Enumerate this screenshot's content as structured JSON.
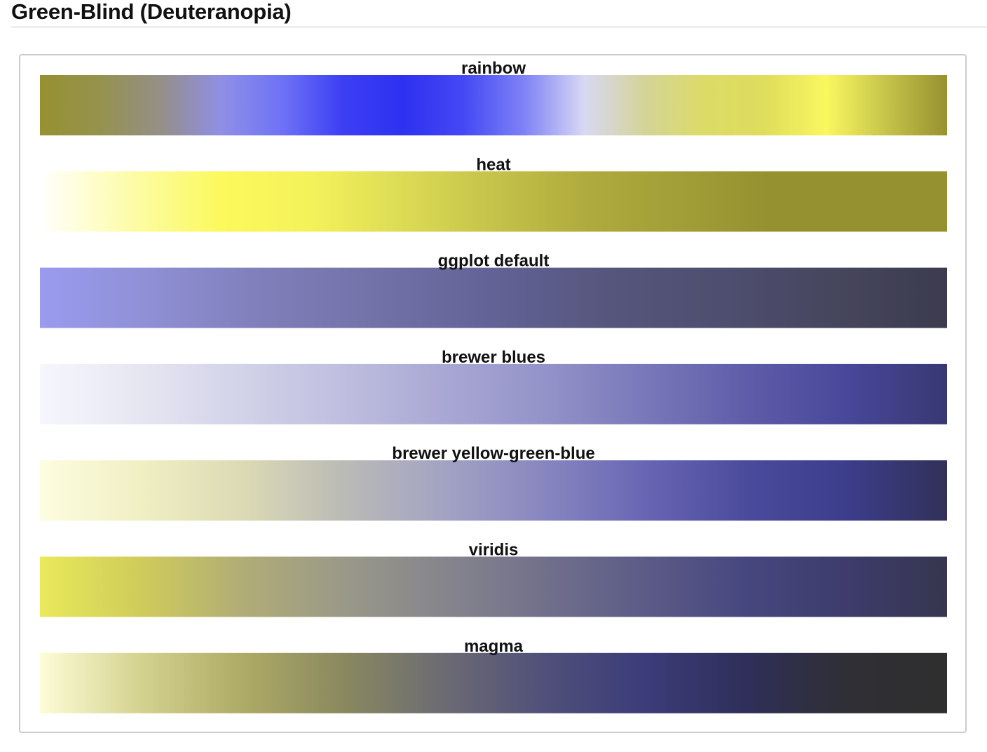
{
  "page": {
    "heading": "Green-Blind (Deuteranopia)"
  },
  "chart_data": {
    "type": "heatmap",
    "description_kind": "color palette swatches",
    "palettes": [
      {
        "name": "rainbow",
        "colors": [
          "#969130",
          "#95924f",
          "#958f88",
          "#8f8fe6",
          "#6f72f6",
          "#3c3ff4",
          "#2e31ef",
          "#4448f4",
          "#7e82f5",
          "#d8d8f3",
          "#d4d498",
          "#dcdb66",
          "#dfdd5c",
          "#faf85f",
          "#c6c34a",
          "#969130"
        ]
      },
      {
        "name": "heat",
        "colors": [
          "#ffffff",
          "#fdfca8",
          "#fcf95c",
          "#f4f25a",
          "#dcdb55",
          "#c5c34a",
          "#b0ab3e",
          "#a29f38",
          "#969130",
          "#969130",
          "#969130"
        ]
      },
      {
        "name": "ggplot default",
        "colors": [
          "#9a9bef",
          "#8e8fd4",
          "#7f7eb9",
          "#7271a7",
          "#626296",
          "#56567d",
          "#4e4e70",
          "#46465e",
          "#3c3b4e"
        ]
      },
      {
        "name": "brewer blues",
        "colors": [
          "#f6f7fd",
          "#e6e6f2",
          "#d2d2e9",
          "#bfbedf",
          "#a9a8d4",
          "#9493c9",
          "#7978ba",
          "#5f5da9",
          "#48479a",
          "#383873"
        ]
      },
      {
        "name": "brewer yellow-green-blue",
        "colors": [
          "#fdfde0",
          "#f0efc3",
          "#dcdab5",
          "#bbbbb6",
          "#a3a3c3",
          "#8886c0",
          "#6866b3",
          "#4b4b9d",
          "#3c3d8b",
          "#313159"
        ]
      },
      {
        "name": "viridis",
        "colors": [
          "#e9e95a",
          "#cfcc5b",
          "#b1ad76",
          "#9a9988",
          "#86858d",
          "#71708b",
          "#5c5b87",
          "#474780",
          "#3d3c6c",
          "#36364f"
        ]
      },
      {
        "name": "magma",
        "colors": [
          "#fdfdd8",
          "#d4d28f",
          "#aeab66",
          "#8a895f",
          "#6c6b73",
          "#50507a",
          "#3c3c7a",
          "#2f2f5a",
          "#2f2f35",
          "#2f2f2f"
        ]
      }
    ]
  }
}
